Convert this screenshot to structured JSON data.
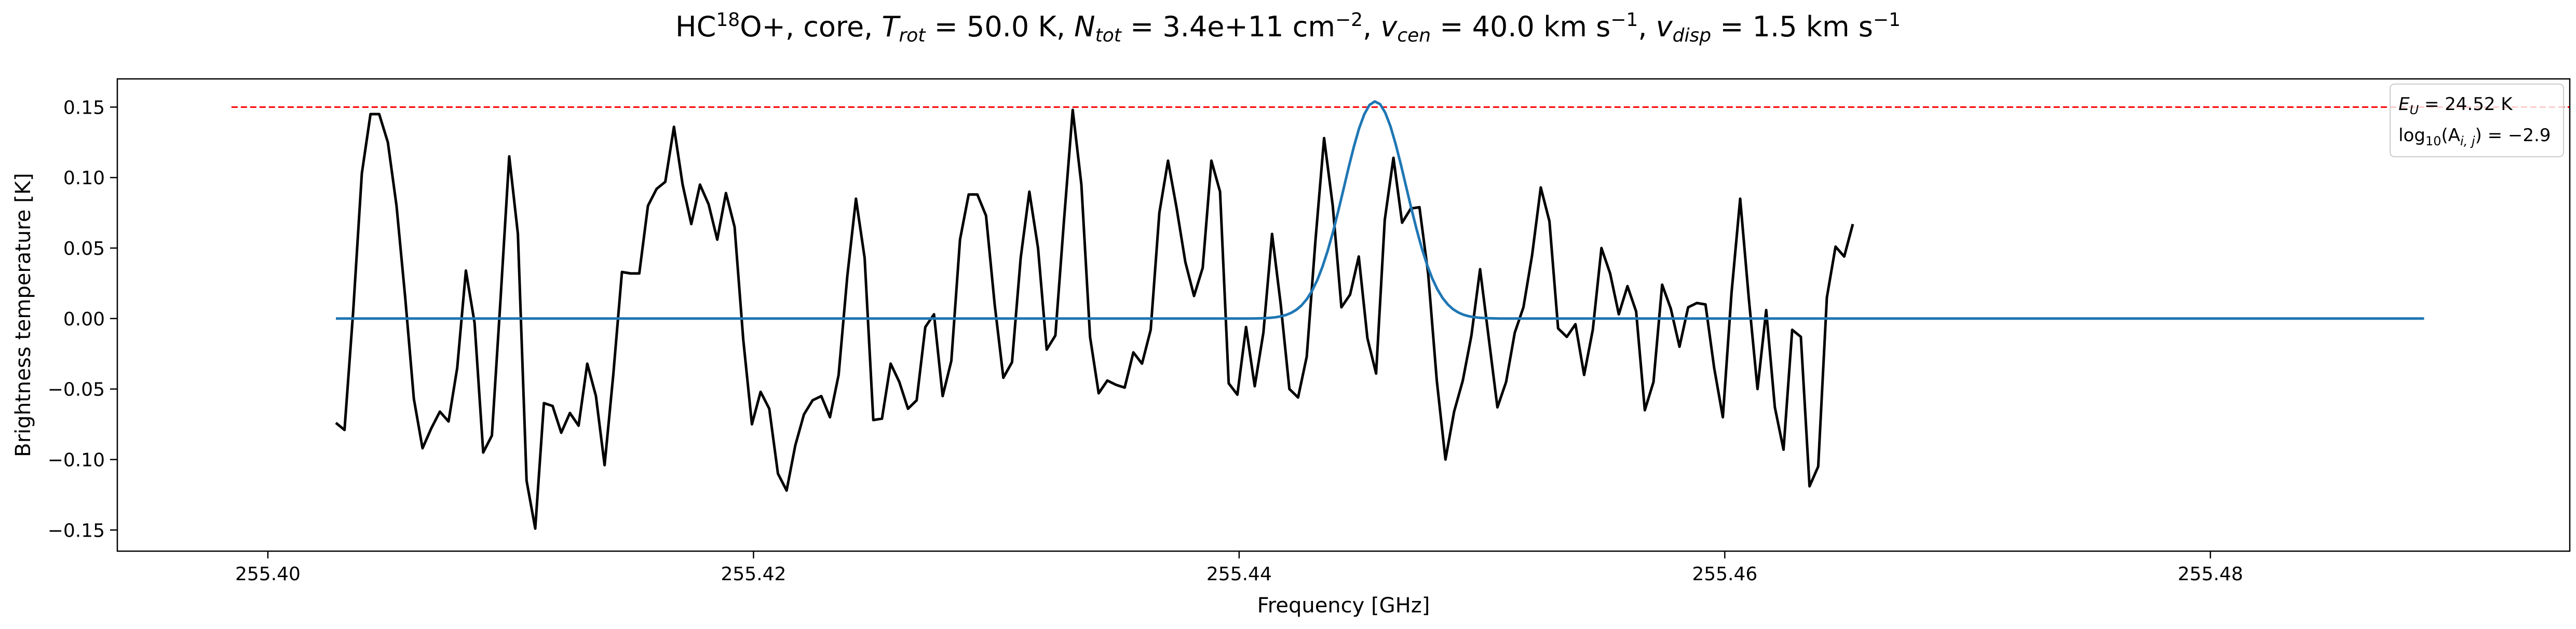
{
  "chart_data": {
    "type": "line",
    "title_parts": {
      "molecule_pre": "HC",
      "molecule_sup": "18",
      "molecule_post": "O+, core, ",
      "trot_sym": "T",
      "trot_sub": "rot",
      "trot_val": " =  50.0 K, ",
      "ntot_sym": "N",
      "ntot_sub": "tot",
      "ntot_val": " =  3.4e+11 cm",
      "ntot_exp": "−2",
      "vcen_pre": ", ",
      "vcen_sym": "v",
      "vcen_sub": "cen",
      "vcen_val": " =  40.0 km s",
      "vcen_exp": "−1",
      "vdisp_pre": ", ",
      "vdisp_sym": "v",
      "vdisp_sub": "disp",
      "vdisp_val": " =  1.5 km s",
      "vdisp_exp": "−1"
    },
    "xlabel": "Frequency [GHz]",
    "ylabel": "Brightness temperature [K]",
    "xlim": [
      255.3938,
      255.4948
    ],
    "ylim": [
      -0.165,
      0.17
    ],
    "xticks": [
      255.4,
      255.42,
      255.44,
      255.46,
      255.48
    ],
    "xtick_labels": [
      "255.40",
      "255.42",
      "255.44",
      "255.46",
      "255.48"
    ],
    "yticks": [
      -0.15,
      -0.1,
      -0.05,
      0.0,
      0.05,
      0.1,
      0.15
    ],
    "ytick_labels": [
      "−0.15",
      "−0.10",
      "−0.05",
      "0.00",
      "0.05",
      "0.10",
      "0.15"
    ],
    "grid": false,
    "legend": {
      "placement": "top-right",
      "line1_sym": "E",
      "line1_sub": "U",
      "line1_val": " = 24.52 K",
      "line2_pre": "log",
      "line2_sub1": "10",
      "line2_mid": "(A",
      "line2_sub2": "i, j",
      "line2_val": ") = −2.9"
    },
    "threshold": {
      "y": 0.15,
      "x_start": 255.3985,
      "x_end": 255.4948,
      "color": "#ff0000",
      "style": "dashed"
    },
    "series": [
      {
        "color": "#000000",
        "x_start": 255.4028,
        "x_step": 0.000357,
        "values": [
          -0.074,
          -0.079,
          0.005,
          0.103,
          0.145,
          0.145,
          0.125,
          0.08,
          0.015,
          -0.057,
          -0.092,
          -0.078,
          -0.066,
          -0.073,
          -0.035,
          0.034,
          -0.003,
          -0.095,
          -0.083,
          0.014,
          0.115,
          0.06,
          -0.115,
          -0.149,
          -0.06,
          -0.062,
          -0.081,
          -0.067,
          -0.076,
          -0.032,
          -0.055,
          -0.104,
          -0.04,
          0.033,
          0.032,
          0.032,
          0.08,
          0.092,
          0.097,
          0.136,
          0.095,
          0.067,
          0.095,
          0.081,
          0.056,
          0.089,
          0.065,
          -0.015,
          -0.075,
          -0.052,
          -0.064,
          -0.11,
          -0.122,
          -0.09,
          -0.068,
          -0.058,
          -0.055,
          -0.07,
          -0.04,
          0.03,
          0.085,
          0.043,
          -0.072,
          -0.071,
          -0.032,
          -0.045,
          -0.064,
          -0.058,
          -0.006,
          0.003,
          -0.055,
          -0.03,
          0.056,
          0.088,
          0.088,
          0.073,
          0.01,
          -0.042,
          -0.031,
          0.043,
          0.09,
          0.05,
          -0.022,
          -0.012,
          0.07,
          0.148,
          0.095,
          -0.013,
          -0.053,
          -0.044,
          -0.047,
          -0.049,
          -0.024,
          -0.032,
          -0.008,
          0.075,
          0.112,
          0.078,
          0.04,
          0.016,
          0.036,
          0.112,
          0.09,
          -0.046,
          -0.054,
          -0.006,
          -0.048,
          -0.01,
          0.06,
          0.01,
          -0.05,
          -0.056,
          -0.027,
          0.055,
          0.128,
          0.08,
          0.008,
          0.017,
          0.044,
          -0.014,
          -0.039,
          0.07,
          0.114,
          0.068,
          0.078,
          0.079,
          0.032,
          -0.044,
          -0.1,
          -0.066,
          -0.044,
          -0.012,
          0.035,
          -0.014,
          -0.063,
          -0.045,
          -0.01,
          0.008,
          0.045,
          0.093,
          0.069,
          -0.007,
          -0.013,
          -0.004,
          -0.04,
          -0.008,
          0.05,
          0.032,
          0.003,
          0.023,
          0.005,
          -0.065,
          -0.045,
          0.024,
          0.007,
          -0.02,
          0.008,
          0.011,
          0.01,
          -0.035,
          -0.07,
          0.018,
          0.085,
          0.014,
          -0.05,
          0.006,
          -0.063,
          -0.093,
          -0.008,
          -0.013,
          -0.119,
          -0.105,
          0.015,
          0.051,
          0.044,
          0.067
        ]
      },
      {
        "color": "#1f77b4",
        "model": "gaussian",
        "x_start": 255.4028,
        "x_end": 255.4888,
        "amplitude": 0.154,
        "center": 255.4456,
        "sigma": 0.00128,
        "baseline": 0.0
      }
    ]
  }
}
